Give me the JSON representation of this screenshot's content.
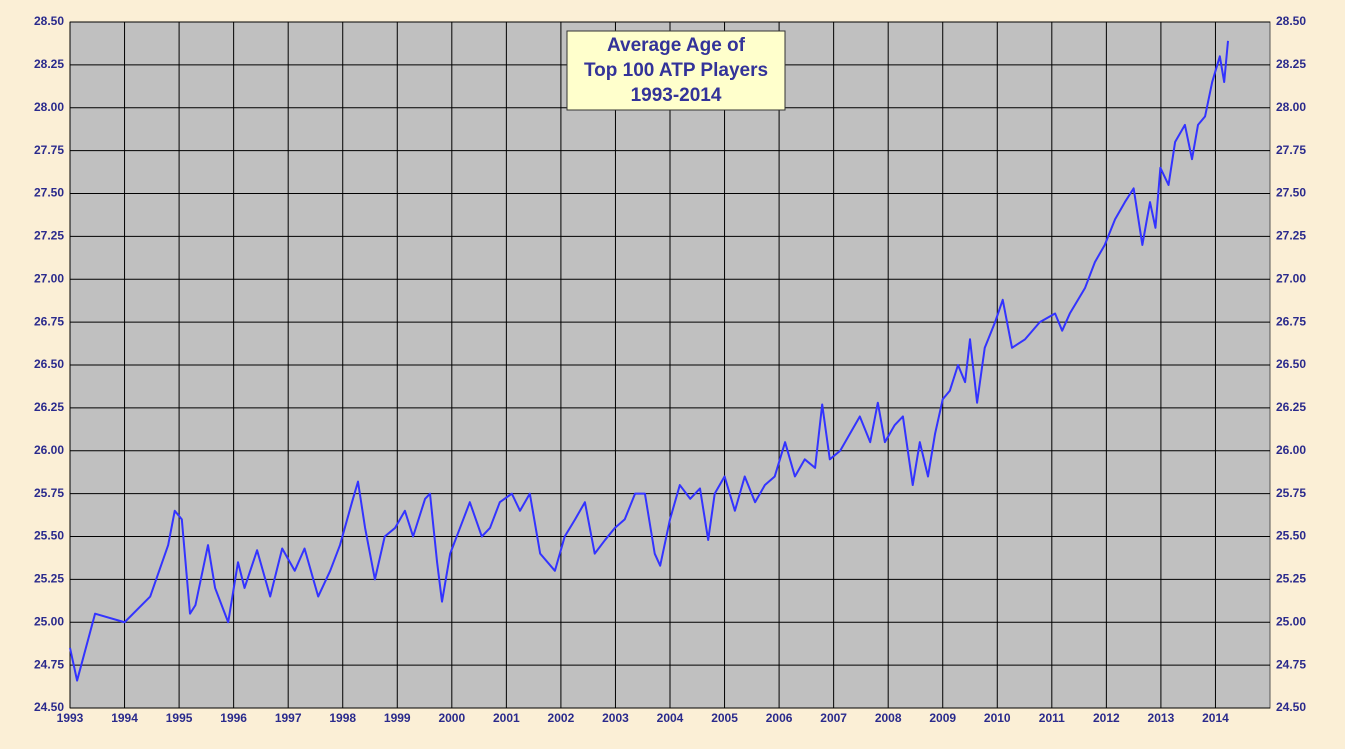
{
  "chart_data": {
    "type": "line",
    "title": [
      "Average Age of",
      "Top 100 ATP Players",
      "1993-2014"
    ],
    "x": [
      1993.0,
      1993.13,
      1993.46,
      1994.0,
      1994.47,
      1994.8,
      1994.92,
      1995.05,
      1995.2,
      1995.3,
      1995.53,
      1995.66,
      1995.9,
      1996.08,
      1996.2,
      1996.43,
      1996.67,
      1996.89,
      1997.12,
      1997.3,
      1997.55,
      1997.77,
      1997.95,
      1998.17,
      1998.28,
      1998.41,
      1998.59,
      1998.77,
      1998.96,
      1999.14,
      1999.29,
      1999.51,
      1999.6,
      1999.73,
      1999.82,
      1999.97,
      2000.15,
      2000.33,
      2000.55,
      2000.7,
      2000.88,
      2001.1,
      2001.25,
      2001.43,
      2001.62,
      2001.89,
      2002.07,
      2002.26,
      2002.44,
      2002.62,
      2002.81,
      2002.99,
      2003.17,
      2003.36,
      2003.54,
      2003.72,
      2003.82,
      2004.0,
      2004.18,
      2004.37,
      2004.55,
      2004.7,
      2004.82,
      2005.0,
      2005.19,
      2005.37,
      2005.56,
      2005.74,
      2005.92,
      2006.11,
      2006.29,
      2006.47,
      2006.66,
      2006.79,
      2006.93,
      2007.12,
      2007.3,
      2007.48,
      2007.67,
      2007.81,
      2007.94,
      2008.12,
      2008.27,
      2008.45,
      2008.58,
      2008.73,
      2008.86,
      2009.0,
      2009.13,
      2009.28,
      2009.41,
      2009.5,
      2009.63,
      2009.77,
      2009.96,
      2010.1,
      2010.27,
      2010.51,
      2010.78,
      2011.06,
      2011.19,
      2011.33,
      2011.61,
      2011.79,
      2011.97,
      2012.16,
      2012.34,
      2012.5,
      2012.66,
      2012.8,
      2012.9,
      2012.99,
      2013.14,
      2013.26,
      2013.44,
      2013.57,
      2013.68,
      2013.81,
      2013.94,
      2014.08,
      2014.16,
      2014.23
    ],
    "values": [
      24.85,
      24.66,
      25.05,
      25.0,
      25.15,
      25.45,
      25.65,
      25.6,
      25.05,
      25.1,
      25.45,
      25.2,
      25.0,
      25.35,
      25.2,
      25.42,
      25.15,
      25.43,
      25.3,
      25.43,
      25.15,
      25.3,
      25.45,
      25.7,
      25.82,
      25.55,
      25.25,
      25.5,
      25.55,
      25.65,
      25.5,
      25.72,
      25.75,
      25.35,
      25.12,
      25.4,
      25.55,
      25.7,
      25.5,
      25.55,
      25.7,
      25.75,
      25.65,
      25.75,
      25.4,
      25.3,
      25.5,
      25.6,
      25.7,
      25.4,
      25.48,
      25.55,
      25.6,
      25.75,
      25.75,
      25.4,
      25.33,
      25.6,
      25.8,
      25.72,
      25.78,
      25.48,
      25.75,
      25.85,
      25.65,
      25.85,
      25.7,
      25.8,
      25.85,
      26.05,
      25.85,
      25.95,
      25.9,
      26.27,
      25.95,
      26.0,
      26.1,
      26.2,
      26.05,
      26.28,
      26.05,
      26.15,
      26.2,
      25.8,
      26.05,
      25.85,
      26.1,
      26.3,
      26.35,
      26.5,
      26.4,
      26.65,
      26.28,
      26.6,
      26.75,
      26.88,
      26.6,
      26.65,
      26.75,
      26.8,
      26.7,
      26.8,
      26.95,
      27.1,
      27.2,
      27.35,
      27.45,
      27.53,
      27.2,
      27.45,
      27.3,
      27.65,
      27.55,
      27.8,
      27.9,
      27.7,
      27.9,
      27.95,
      28.15,
      28.3,
      28.15,
      28.39
    ],
    "color": "#3333ff",
    "xlim": [
      1993,
      2015
    ],
    "xticks": [
      1993,
      1994,
      1995,
      1996,
      1997,
      1998,
      1999,
      2000,
      2001,
      2002,
      2003,
      2004,
      2005,
      2006,
      2007,
      2008,
      2009,
      2010,
      2011,
      2012,
      2013,
      2014
    ],
    "ylim": [
      24.5,
      28.5
    ],
    "yticks": [
      {
        "value": 24.5,
        "label": "24.50"
      },
      {
        "value": 24.75,
        "label": "24.75"
      },
      {
        "value": 25,
        "label": "25.00"
      },
      {
        "value": 25.25,
        "label": "25.25"
      },
      {
        "value": 25.5,
        "label": "25.50"
      },
      {
        "value": 25.75,
        "label": "25.75"
      },
      {
        "value": 26,
        "label": "26.00"
      },
      {
        "value": 26.25,
        "label": "26.25"
      },
      {
        "value": 26.5,
        "label": "26.50"
      },
      {
        "value": 26.75,
        "label": "26.75"
      },
      {
        "value": 27,
        "label": "27.00"
      },
      {
        "value": 27.25,
        "label": "27.25"
      },
      {
        "value": 27.5,
        "label": "27.50"
      },
      {
        "value": 27.75,
        "label": "27.75"
      },
      {
        "value": 28,
        "label": "28.00"
      },
      {
        "value": 28.25,
        "label": "28.25"
      },
      {
        "value": 28.5,
        "label": "28.50"
      }
    ],
    "grid": true
  }
}
